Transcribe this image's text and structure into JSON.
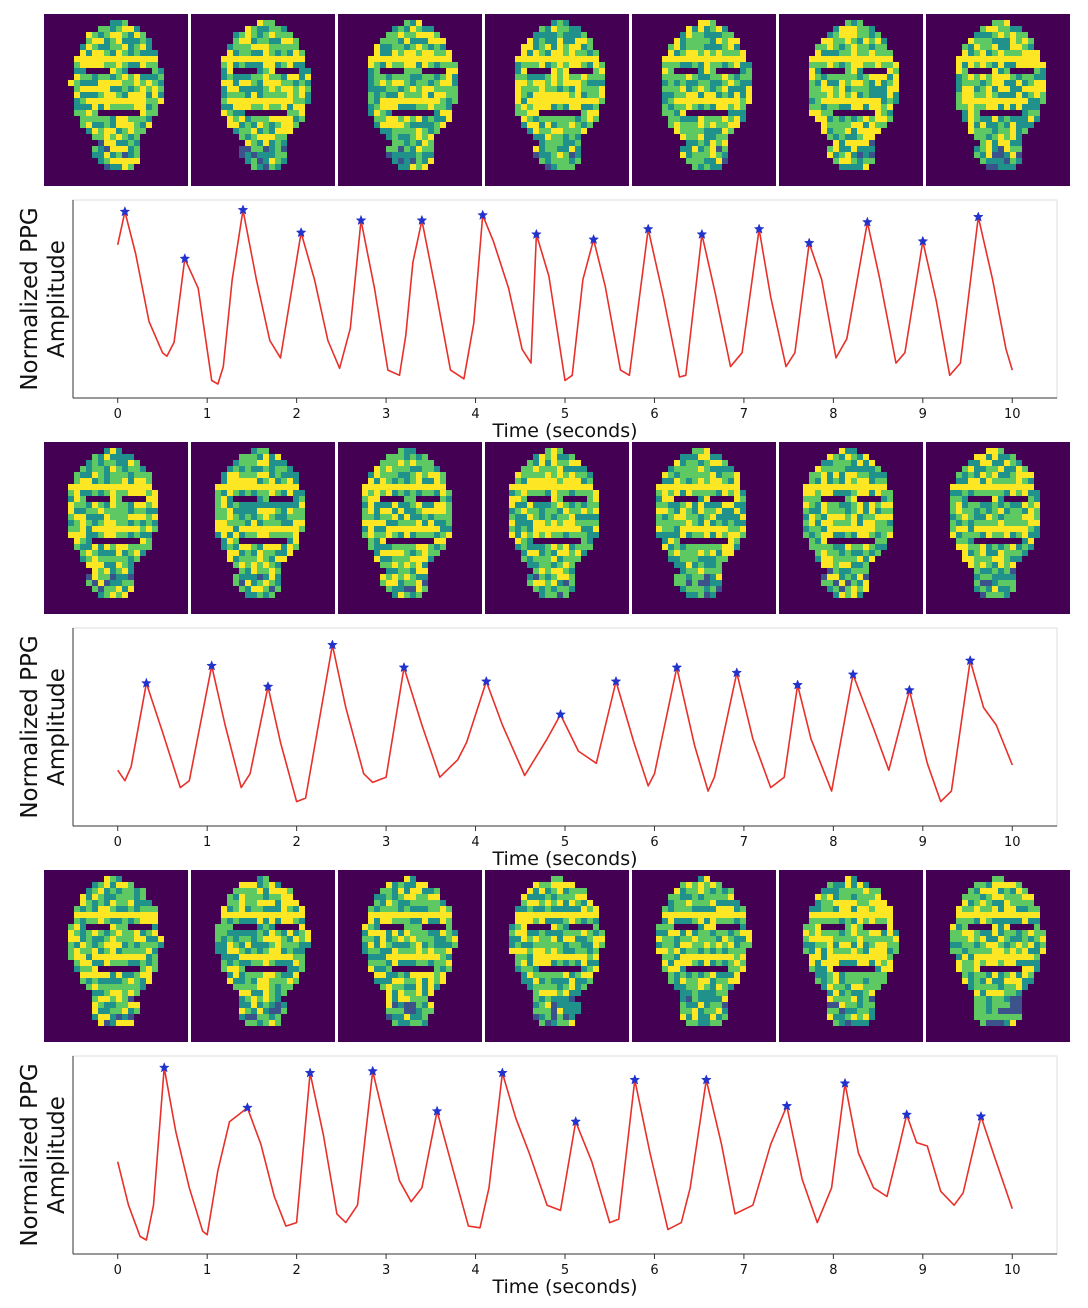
{
  "figure": {
    "frames_per_panel": 7,
    "colormap": [
      "#440154",
      "#3b528b",
      "#21918c",
      "#5ec962",
      "#fde725"
    ]
  },
  "chart_data": [
    {
      "type": "line",
      "title": "",
      "xlabel": "Time (seconds)",
      "ylabel": "Normalized PPG Amplitude",
      "xlim": [
        -0.5,
        10.5
      ],
      "xticks": [
        0,
        1,
        2,
        3,
        4,
        5,
        6,
        7,
        8,
        9,
        10
      ],
      "grid": false,
      "line_color": "#e8302a",
      "marker_color": "#2233cc",
      "peaks": [
        [
          0.08,
          0.99
        ],
        [
          0.75,
          0.72
        ],
        [
          1.4,
          1.0
        ],
        [
          2.05,
          0.87
        ],
        [
          2.72,
          0.94
        ],
        [
          3.4,
          0.94
        ],
        [
          4.08,
          0.97
        ],
        [
          4.68,
          0.86
        ],
        [
          5.32,
          0.83
        ],
        [
          5.93,
          0.89
        ],
        [
          6.53,
          0.86
        ],
        [
          7.17,
          0.89
        ],
        [
          7.73,
          0.81
        ],
        [
          8.38,
          0.93
        ],
        [
          9.0,
          0.82
        ],
        [
          9.62,
          0.96
        ]
      ],
      "series": [
        {
          "x": [
            0,
            0.08,
            0.2,
            0.35,
            0.5,
            0.55,
            0.63,
            0.75,
            0.9,
            1.05,
            1.12,
            1.18,
            1.28,
            1.4,
            1.55,
            1.7,
            1.82,
            2.05,
            2.2,
            2.35,
            2.48,
            2.6,
            2.72,
            2.87,
            3.02,
            3.15,
            3.22,
            3.3,
            3.4,
            3.55,
            3.72,
            3.87,
            3.98,
            4.08,
            4.2,
            4.37,
            4.52,
            4.62,
            4.68,
            4.82,
            5.0,
            5.08,
            5.2,
            5.32,
            5.45,
            5.62,
            5.72,
            5.93,
            6.1,
            6.28,
            6.35,
            6.53,
            6.68,
            6.85,
            6.98,
            7.17,
            7.3,
            7.47,
            7.57,
            7.73,
            7.87,
            8.03,
            8.15,
            8.38,
            8.52,
            8.7,
            8.8,
            9.0,
            9.15,
            9.3,
            9.42,
            9.62,
            9.78,
            9.93,
            10.0
          ],
          "y": [
            0.8,
            0.99,
            0.75,
            0.36,
            0.18,
            0.16,
            0.24,
            0.72,
            0.55,
            0.02,
            0.0,
            0.1,
            0.6,
            1.0,
            0.6,
            0.25,
            0.15,
            0.87,
            0.6,
            0.25,
            0.09,
            0.32,
            0.94,
            0.55,
            0.08,
            0.05,
            0.28,
            0.7,
            0.94,
            0.55,
            0.08,
            0.03,
            0.35,
            0.97,
            0.82,
            0.55,
            0.2,
            0.12,
            0.86,
            0.62,
            0.02,
            0.05,
            0.6,
            0.83,
            0.56,
            0.08,
            0.05,
            0.89,
            0.5,
            0.04,
            0.05,
            0.86,
            0.52,
            0.1,
            0.18,
            0.89,
            0.5,
            0.1,
            0.18,
            0.81,
            0.6,
            0.15,
            0.26,
            0.93,
            0.6,
            0.12,
            0.18,
            0.82,
            0.48,
            0.05,
            0.12,
            0.96,
            0.6,
            0.2,
            0.08
          ]
        }
      ]
    },
    {
      "type": "line",
      "title": "",
      "xlabel": "Time (seconds)",
      "ylabel": "Normalized PPG Amplitude",
      "xlim": [
        -0.5,
        10.5
      ],
      "xticks": [
        0,
        1,
        2,
        3,
        4,
        5,
        6,
        7,
        8,
        9,
        10
      ],
      "grid": false,
      "line_color": "#e8302a",
      "marker_color": "#2233cc",
      "peaks": [
        [
          0.32,
          0.74
        ],
        [
          1.05,
          0.84
        ],
        [
          1.68,
          0.72
        ],
        [
          2.4,
          0.96
        ],
        [
          3.2,
          0.83
        ],
        [
          4.12,
          0.75
        ],
        [
          4.95,
          0.56
        ],
        [
          5.57,
          0.75
        ],
        [
          6.25,
          0.83
        ],
        [
          6.92,
          0.8
        ],
        [
          7.6,
          0.73
        ],
        [
          8.22,
          0.79
        ],
        [
          8.85,
          0.7
        ],
        [
          9.53,
          0.87
        ]
      ],
      "series": [
        {
          "x": [
            0,
            0.08,
            0.15,
            0.32,
            0.5,
            0.7,
            0.8,
            1.05,
            1.2,
            1.38,
            1.48,
            1.68,
            1.82,
            2.0,
            2.1,
            2.4,
            2.55,
            2.75,
            2.85,
            3.0,
            3.2,
            3.4,
            3.6,
            3.8,
            3.9,
            4.12,
            4.3,
            4.55,
            4.8,
            4.95,
            5.15,
            5.35,
            5.57,
            5.77,
            5.93,
            6.0,
            6.25,
            6.45,
            6.6,
            6.67,
            6.92,
            7.1,
            7.3,
            7.45,
            7.6,
            7.75,
            7.98,
            8.22,
            8.45,
            8.62,
            8.85,
            9.05,
            9.2,
            9.32,
            9.53,
            9.68,
            9.82,
            10.0
          ],
          "y": [
            0.24,
            0.18,
            0.26,
            0.74,
            0.46,
            0.14,
            0.18,
            0.84,
            0.5,
            0.14,
            0.22,
            0.72,
            0.4,
            0.06,
            0.08,
            0.96,
            0.6,
            0.22,
            0.17,
            0.2,
            0.83,
            0.5,
            0.2,
            0.3,
            0.4,
            0.75,
            0.5,
            0.21,
            0.42,
            0.56,
            0.35,
            0.28,
            0.75,
            0.4,
            0.15,
            0.22,
            0.83,
            0.38,
            0.12,
            0.2,
            0.8,
            0.42,
            0.14,
            0.2,
            0.73,
            0.42,
            0.12,
            0.79,
            0.48,
            0.24,
            0.7,
            0.28,
            0.06,
            0.12,
            0.87,
            0.6,
            0.5,
            0.27
          ]
        }
      ]
    },
    {
      "type": "line",
      "title": "",
      "xlabel": "Time (seconds)",
      "ylabel": "Normalized PPG Amplitude",
      "xlim": [
        -0.5,
        10.5
      ],
      "xticks": [
        0,
        1,
        2,
        3,
        4,
        5,
        6,
        7,
        8,
        9,
        10
      ],
      "grid": false,
      "line_color": "#e8302a",
      "marker_color": "#2233cc",
      "peaks": [
        [
          0.52,
          0.99
        ],
        [
          1.45,
          0.76
        ],
        [
          2.15,
          0.96
        ],
        [
          2.85,
          0.97
        ],
        [
          3.57,
          0.74
        ],
        [
          4.3,
          0.96
        ],
        [
          5.12,
          0.68
        ],
        [
          5.78,
          0.92
        ],
        [
          6.58,
          0.92
        ],
        [
          7.48,
          0.77
        ],
        [
          8.13,
          0.9
        ],
        [
          8.82,
          0.72
        ],
        [
          9.65,
          0.71
        ]
      ],
      "series": [
        {
          "x": [
            0,
            0.12,
            0.25,
            0.32,
            0.4,
            0.52,
            0.65,
            0.8,
            0.95,
            1.0,
            1.12,
            1.25,
            1.45,
            1.6,
            1.75,
            1.88,
            2.0,
            2.15,
            2.3,
            2.45,
            2.55,
            2.68,
            2.85,
            3.0,
            3.15,
            3.28,
            3.4,
            3.57,
            3.75,
            3.92,
            4.05,
            4.15,
            4.3,
            4.45,
            4.6,
            4.8,
            4.95,
            5.12,
            5.3,
            5.5,
            5.6,
            5.78,
            5.95,
            6.15,
            6.3,
            6.4,
            6.58,
            6.75,
            6.9,
            7.1,
            7.3,
            7.48,
            7.65,
            7.82,
            7.98,
            8.13,
            8.28,
            8.45,
            8.6,
            8.7,
            8.82,
            8.93,
            9.05,
            9.2,
            9.35,
            9.45,
            9.65,
            9.8,
            10.0
          ],
          "y": [
            0.45,
            0.2,
            0.02,
            0.0,
            0.2,
            0.99,
            0.62,
            0.3,
            0.05,
            0.03,
            0.4,
            0.68,
            0.76,
            0.55,
            0.25,
            0.08,
            0.1,
            0.96,
            0.6,
            0.15,
            0.1,
            0.2,
            0.97,
            0.65,
            0.34,
            0.22,
            0.3,
            0.74,
            0.4,
            0.08,
            0.07,
            0.3,
            0.96,
            0.7,
            0.5,
            0.2,
            0.17,
            0.68,
            0.45,
            0.1,
            0.12,
            0.92,
            0.5,
            0.06,
            0.1,
            0.3,
            0.92,
            0.55,
            0.15,
            0.2,
            0.55,
            0.77,
            0.35,
            0.1,
            0.3,
            0.9,
            0.5,
            0.3,
            0.25,
            0.46,
            0.72,
            0.56,
            0.54,
            0.28,
            0.2,
            0.27,
            0.71,
            0.48,
            0.18
          ]
        }
      ]
    }
  ]
}
